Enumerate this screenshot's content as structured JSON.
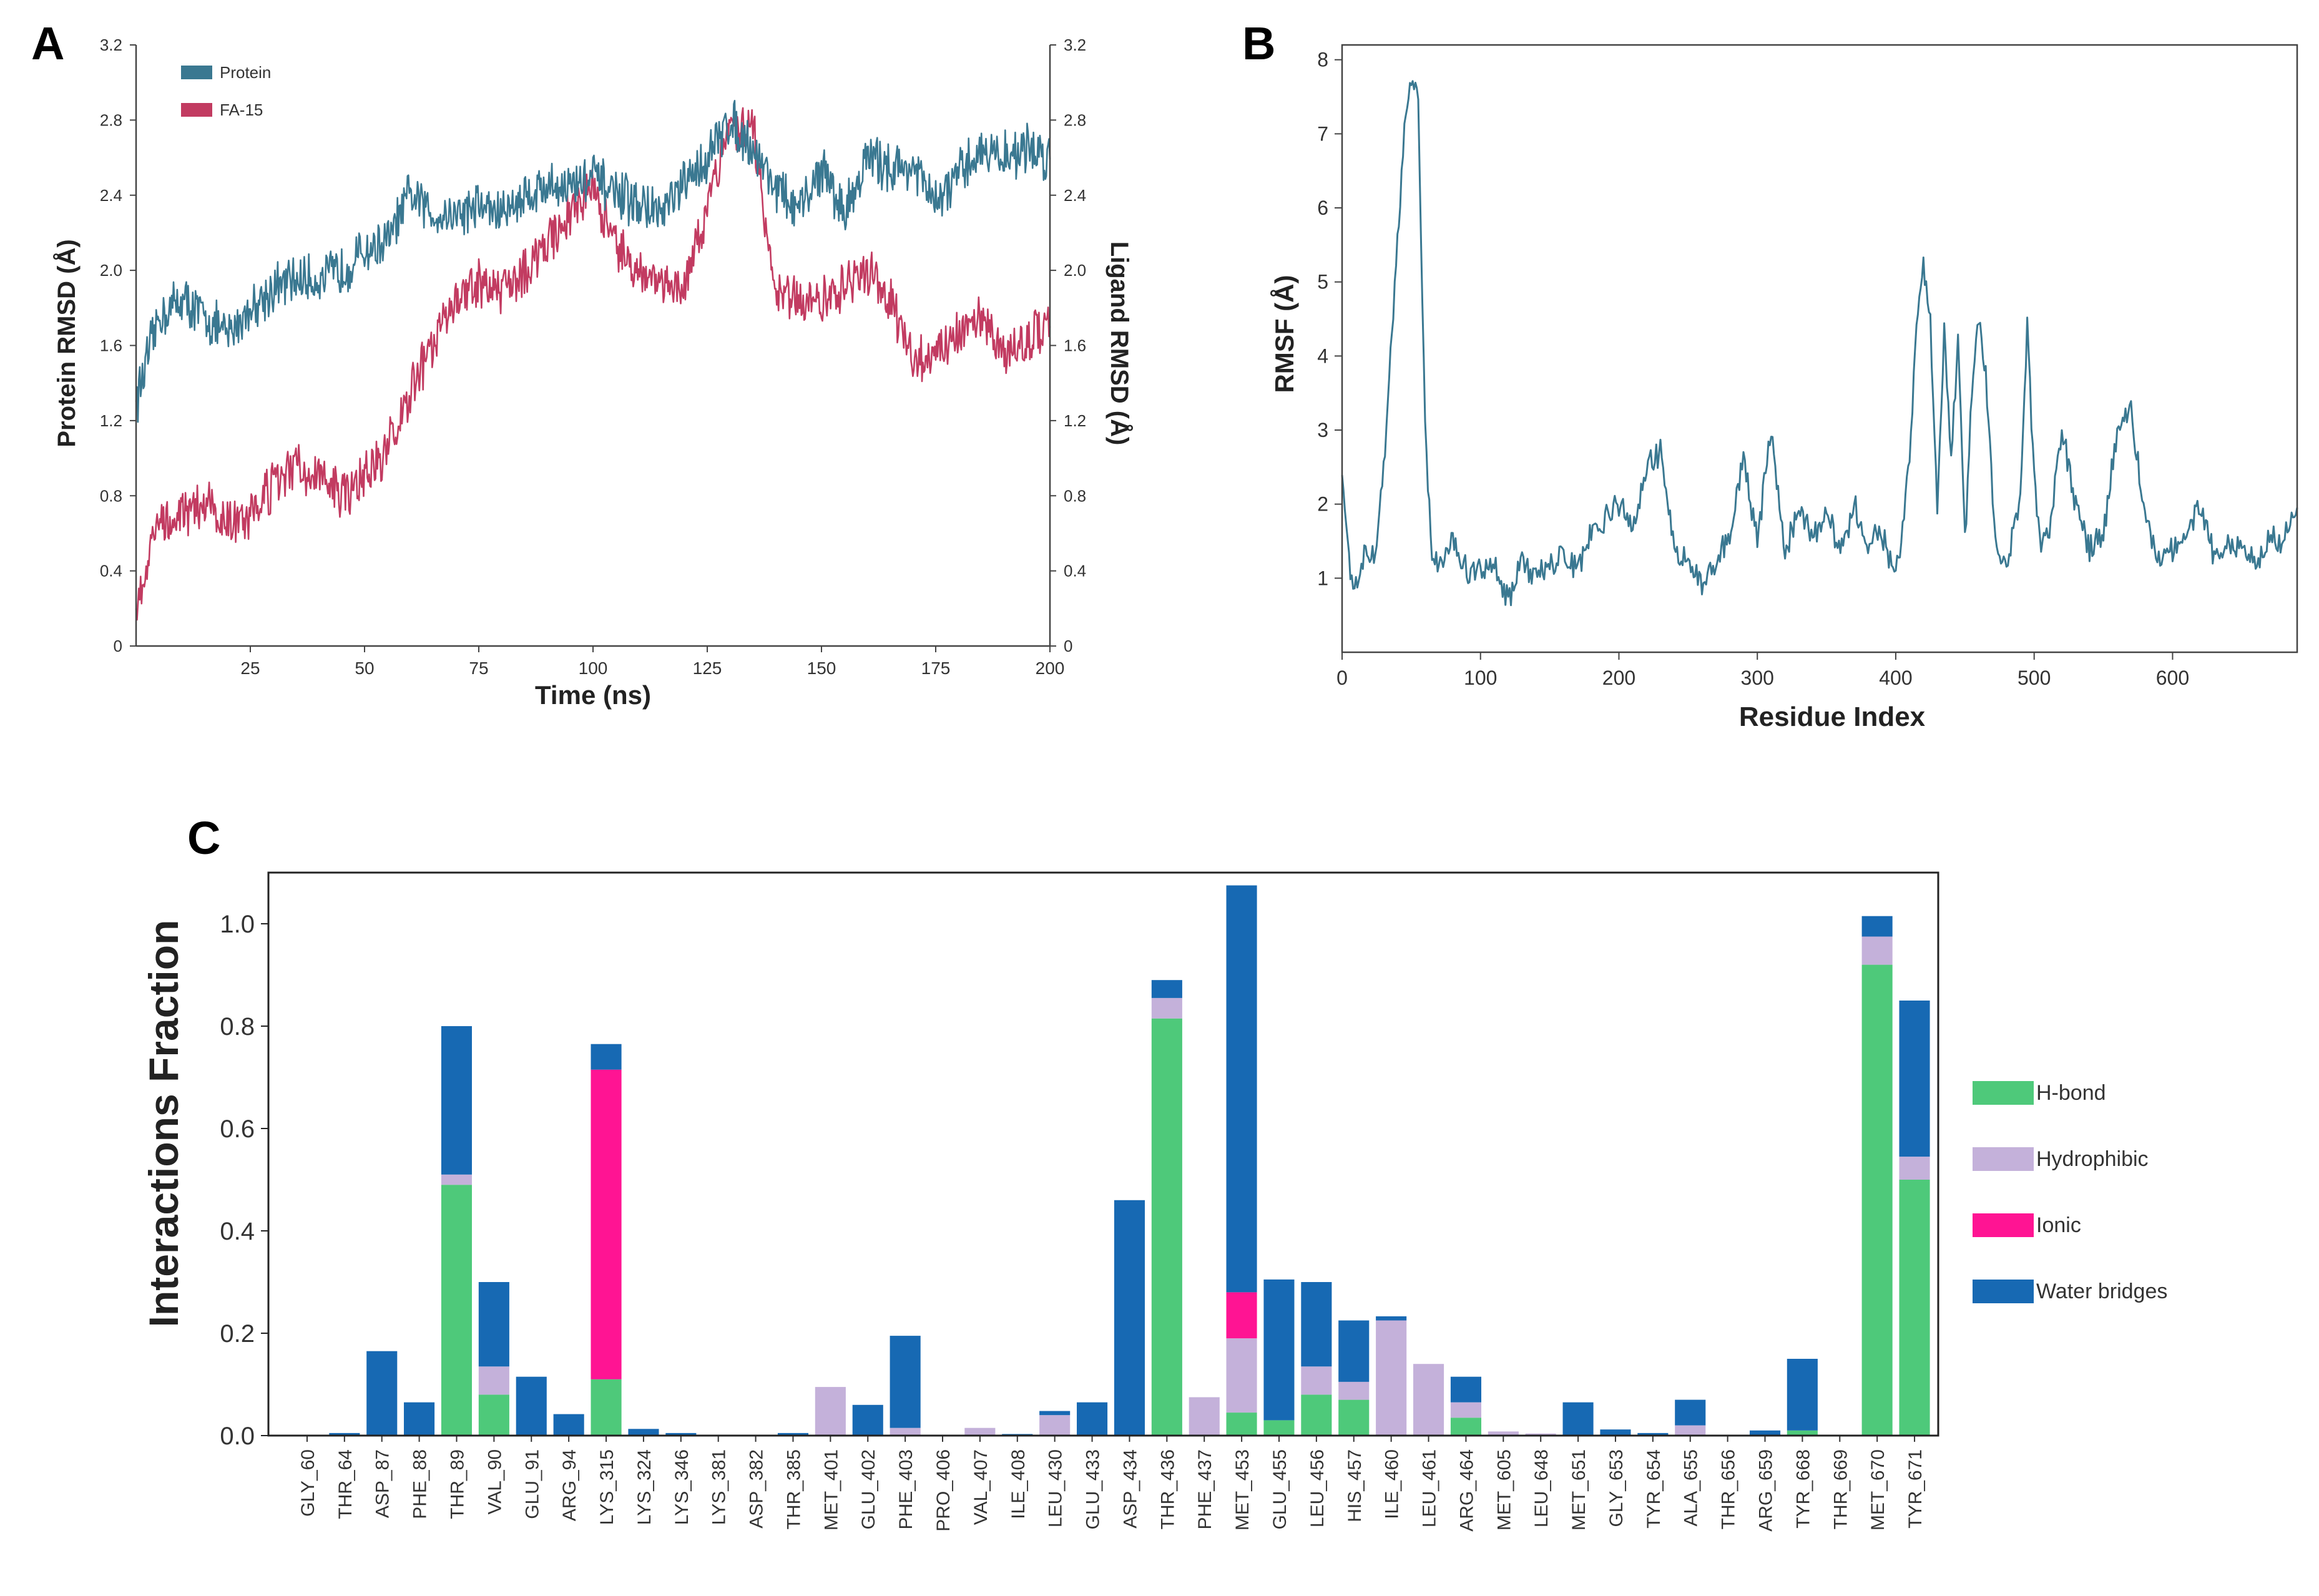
{
  "chart_data": [
    {
      "panel": "A",
      "type": "line",
      "title": "",
      "xlabel": "Time (ns)",
      "ylabel_left": "Protein RMSD (Å)",
      "ylabel_right": "Ligand RMSD (Å)",
      "xlim": [
        0,
        200
      ],
      "ylim_left": [
        0,
        3.2
      ],
      "ylim_right": [
        0,
        3.2
      ],
      "x_ticks": [
        "25",
        "50",
        "75",
        "100",
        "125",
        "150",
        "175",
        "200"
      ],
      "y_ticks_left": [
        "0",
        "0.4",
        "0.8",
        "1.2",
        "1.6",
        "2.0",
        "2.4",
        "2.8",
        "3.2"
      ],
      "y_ticks_right": [
        "0",
        "0.4",
        "0.8",
        "1.2",
        "1.6",
        "2.0",
        "2.4",
        "2.8",
        "3.2"
      ],
      "legend": [
        "Protein",
        "FA-15"
      ],
      "legend_position": "top-left",
      "series": [
        {
          "name": "Protein",
          "color": "#3a7891",
          "x": [
            0,
            5,
            10,
            15,
            20,
            25,
            30,
            35,
            40,
            45,
            50,
            55,
            60,
            65,
            70,
            75,
            80,
            85,
            90,
            95,
            100,
            105,
            110,
            115,
            120,
            125,
            130,
            135,
            140,
            145,
            150,
            155,
            160,
            165,
            170,
            175,
            180,
            185,
            190,
            195,
            200
          ],
          "y": [
            1.3,
            1.75,
            1.85,
            1.75,
            1.65,
            1.8,
            1.9,
            1.95,
            1.95,
            2.0,
            2.1,
            2.15,
            2.4,
            2.3,
            2.3,
            2.35,
            2.3,
            2.4,
            2.45,
            2.45,
            2.5,
            2.4,
            2.35,
            2.3,
            2.45,
            2.6,
            2.8,
            2.65,
            2.45,
            2.3,
            2.55,
            2.3,
            2.6,
            2.55,
            2.55,
            2.35,
            2.5,
            2.65,
            2.6,
            2.65,
            2.6
          ]
        },
        {
          "name": "FA-15",
          "color": "#c23b61",
          "x": [
            0,
            5,
            10,
            15,
            20,
            25,
            30,
            35,
            40,
            45,
            50,
            55,
            60,
            65,
            70,
            75,
            80,
            85,
            90,
            95,
            100,
            105,
            110,
            115,
            120,
            125,
            130,
            135,
            140,
            145,
            150,
            155,
            160,
            165,
            170,
            175,
            180,
            185,
            190,
            195,
            200
          ],
          "y": [
            0.2,
            0.68,
            0.72,
            0.75,
            0.65,
            0.7,
            0.85,
            0.95,
            0.9,
            0.8,
            0.9,
            1.05,
            1.35,
            1.6,
            1.85,
            1.95,
            1.9,
            2.0,
            2.15,
            2.3,
            2.45,
            2.1,
            2.0,
            1.95,
            1.9,
            2.3,
            2.75,
            2.75,
            1.9,
            1.85,
            1.85,
            1.9,
            2.0,
            1.85,
            1.5,
            1.55,
            1.65,
            1.75,
            1.55,
            1.6,
            1.75
          ]
        }
      ]
    },
    {
      "panel": "B",
      "type": "line",
      "title": "",
      "xlabel": "Residue Index",
      "ylabel": "RMSF (Å)",
      "xlim": [
        0,
        690
      ],
      "ylim": [
        0,
        8.2
      ],
      "x_ticks": [
        "0",
        "100",
        "200",
        "300",
        "400",
        "500",
        "600"
      ],
      "y_ticks": [
        "1",
        "2",
        "3",
        "4",
        "5",
        "6",
        "7",
        "8"
      ],
      "series": [
        {
          "name": "RMSF",
          "color": "#3a7891",
          "x": [
            0,
            5,
            10,
            15,
            20,
            25,
            30,
            35,
            40,
            45,
            50,
            55,
            60,
            65,
            70,
            80,
            90,
            100,
            110,
            120,
            130,
            140,
            150,
            160,
            170,
            180,
            190,
            200,
            210,
            220,
            230,
            240,
            250,
            260,
            270,
            280,
            290,
            300,
            310,
            320,
            330,
            340,
            350,
            360,
            370,
            380,
            390,
            400,
            410,
            415,
            420,
            425,
            430,
            435,
            440,
            445,
            450,
            455,
            460,
            465,
            470,
            475,
            480,
            490,
            495,
            500,
            505,
            510,
            520,
            530,
            540,
            550,
            560,
            570,
            580,
            590,
            600,
            610,
            620,
            630,
            640,
            650,
            660,
            670,
            680,
            690
          ],
          "y": [
            2.5,
            1.2,
            0.9,
            1.3,
            1.2,
            1.4,
            2.5,
            4.0,
            5.5,
            7.0,
            7.8,
            7.5,
            3.0,
            1.3,
            1.2,
            1.6,
            1.1,
            1.1,
            1.2,
            0.7,
            1.2,
            1.0,
            1.2,
            1.3,
            1.1,
            1.6,
            1.8,
            2.0,
            1.7,
            2.5,
            2.7,
            1.4,
            1.2,
            0.9,
            1.2,
            1.6,
            2.6,
            1.5,
            3.0,
            1.3,
            2.0,
            1.5,
            2.0,
            1.3,
            2.0,
            1.5,
            1.6,
            1.0,
            2.5,
            4.5,
            5.2,
            4.5,
            2.0,
            4.3,
            2.5,
            4.3,
            1.5,
            3.5,
            4.6,
            3.8,
            2.0,
            1.3,
            1.2,
            2.0,
            4.5,
            2.3,
            1.5,
            1.5,
            3.0,
            2.0,
            1.4,
            1.6,
            3.0,
            3.3,
            1.8,
            1.3,
            1.4,
            1.6,
            2.0,
            1.3,
            1.5,
            1.4,
            1.2,
            1.6,
            1.5,
            2.0
          ]
        }
      ]
    },
    {
      "panel": "C",
      "type": "bar",
      "stacked": true,
      "title": "",
      "xlabel": "",
      "ylabel": "Interactions Fraction",
      "ylim": [
        0,
        1.1
      ],
      "y_ticks": [
        "0.0",
        "0.2",
        "0.4",
        "0.6",
        "0.8",
        "1.0"
      ],
      "legend_position": "right",
      "categories": [
        "GLY_60",
        "THR_64",
        "ASP_87",
        "PHE_88",
        "THR_89",
        "VAL_90",
        "GLU_91",
        "ARG_94",
        "LYS_315",
        "LYS_324",
        "LYS_346",
        "LYS_381",
        "ASP_382",
        "THR_385",
        "MET_401",
        "GLU_402",
        "PHE_403",
        "PRO_406",
        "VAL_407",
        "ILE_408",
        "LEU_430",
        "GLU_433",
        "ASP_434",
        "THR_436",
        "PHE_437",
        "MET_453",
        "GLU_455",
        "LEU_456",
        "HIS_457",
        "ILE_460",
        "LEU_461",
        "ARG_464",
        "MET_605",
        "LEU_648",
        "MET_651",
        "GLY_653",
        "TYR_654",
        "ALA_655",
        "THR_656",
        "ARG_659",
        "TYR_668",
        "THR_669",
        "MET_670",
        "TYR_671"
      ],
      "series": [
        {
          "name": "H-bond",
          "color": "#4ec97a",
          "values": [
            0,
            0,
            0,
            0,
            0.49,
            0.08,
            0,
            0,
            0.11,
            0,
            0,
            0,
            0,
            0,
            0,
            0,
            0,
            0,
            0,
            0,
            0,
            0,
            0,
            0.815,
            0,
            0.045,
            0.03,
            0.08,
            0.07,
            0,
            0,
            0.035,
            0,
            0,
            0,
            0,
            0,
            0,
            0,
            0,
            0.01,
            0,
            0.92,
            0.5
          ]
        },
        {
          "name": "Hydrophibic",
          "color": "#c4b1da",
          "values": [
            0,
            0,
            0,
            0,
            0.02,
            0.055,
            0,
            0,
            0,
            0,
            0,
            0,
            0,
            0,
            0.095,
            0,
            0.015,
            0,
            0.015,
            0,
            0.04,
            0,
            0,
            0.04,
            0.075,
            0.145,
            0,
            0.055,
            0.035,
            0.225,
            0.14,
            0.03,
            0.008,
            0.004,
            0,
            0,
            0,
            0.02,
            0,
            0,
            0,
            0,
            0.055,
            0.045
          ]
        },
        {
          "name": "Ionic",
          "color": "#ff1493",
          "values": [
            0,
            0,
            0,
            0,
            0,
            0,
            0,
            0,
            0.605,
            0,
            0,
            0,
            0,
            0,
            0,
            0,
            0,
            0,
            0,
            0,
            0,
            0,
            0,
            0,
            0,
            0.09,
            0,
            0,
            0,
            0,
            0,
            0,
            0,
            0,
            0,
            0,
            0,
            0,
            0,
            0,
            0,
            0,
            0,
            0
          ]
        },
        {
          "name": "Water bridges",
          "color": "#1769b3",
          "values": [
            0,
            0.005,
            0.165,
            0.065,
            0.29,
            0.165,
            0.115,
            0.042,
            0.05,
            0.013,
            0.005,
            0,
            0,
            0.005,
            0,
            0.06,
            0.18,
            0,
            0,
            0.003,
            0.008,
            0.065,
            0.46,
            0.035,
            0,
            0.795,
            0.275,
            0.165,
            0.12,
            0.008,
            0,
            0.05,
            0,
            0,
            0.065,
            0.012,
            0.005,
            0.05,
            0,
            0.01,
            0.14,
            0,
            0.04,
            0.305
          ]
        }
      ]
    }
  ],
  "panels": {
    "a": "A",
    "b": "B",
    "c": "C"
  }
}
